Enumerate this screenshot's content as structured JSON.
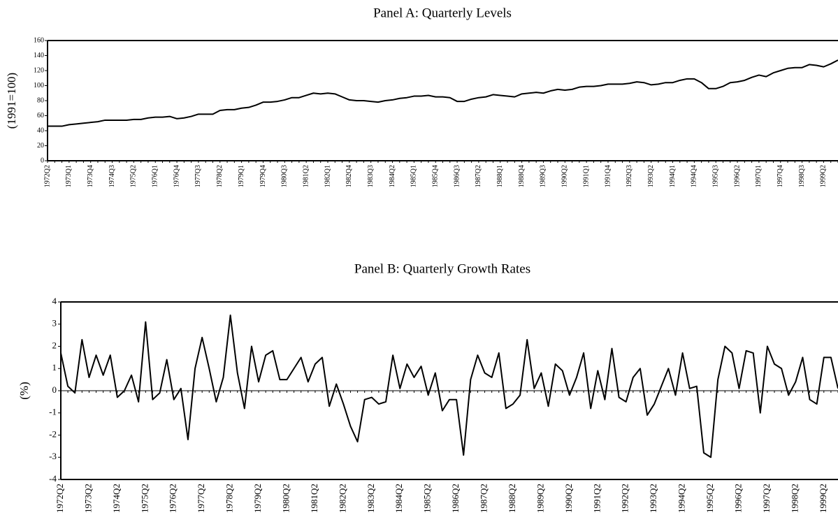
{
  "chart_data": [
    {
      "type": "line",
      "title": "Panel A: Quarterly Levels",
      "y_label": "(1991=100)",
      "categories": [
        "1972Q2",
        null,
        null,
        "1973Q1",
        null,
        null,
        "1973Q4",
        null,
        null,
        "1974Q3",
        null,
        null,
        "1975Q2",
        null,
        null,
        "1976Q1",
        null,
        null,
        "1976Q4",
        null,
        null,
        "1977Q3",
        null,
        null,
        "1978Q2",
        null,
        null,
        "1979Q1",
        null,
        null,
        "1979Q4",
        null,
        null,
        "1980Q3",
        null,
        null,
        "1981Q2",
        null,
        null,
        "1982Q1",
        null,
        null,
        "1982Q4",
        null,
        null,
        "1983Q3",
        null,
        null,
        "1984Q2",
        null,
        null,
        "1985Q1",
        null,
        null,
        "1985Q4",
        null,
        null,
        "1986Q3",
        null,
        null,
        "1987Q2",
        null,
        null,
        "1988Q1",
        null,
        null,
        "1988Q4",
        null,
        null,
        "1989Q3",
        null,
        null,
        "1990Q2",
        null,
        null,
        "1991Q1",
        null,
        null,
        "1991Q4",
        null,
        null,
        "1992Q3",
        null,
        null,
        "1993Q2",
        null,
        null,
        "1994Q1",
        null,
        null,
        "1994Q4",
        null,
        null,
        "1995Q3",
        null,
        null,
        "1996Q2",
        null,
        null,
        "1997Q1",
        null,
        null,
        "1997Q4",
        null,
        null,
        "1998Q3",
        null,
        null,
        "1999Q2",
        null,
        null
      ],
      "values": [
        46,
        46,
        46,
        48,
        49,
        50,
        51,
        52,
        54,
        54,
        54,
        54,
        55,
        55,
        57,
        58,
        58,
        59,
        56,
        57,
        59,
        62,
        62,
        62,
        67,
        68,
        68,
        70,
        71,
        74,
        78,
        78,
        79,
        81,
        84,
        84,
        87,
        90,
        89,
        90,
        89,
        85,
        81,
        80,
        80,
        79,
        78,
        80,
        81,
        83,
        84,
        86,
        86,
        87,
        85,
        85,
        84,
        79,
        79,
        82,
        84,
        85,
        88,
        87,
        86,
        85,
        89,
        90,
        91,
        90,
        93,
        95,
        94,
        95,
        98,
        99,
        99,
        100,
        102,
        102,
        102,
        103,
        105,
        104,
        101,
        102,
        104,
        104,
        107,
        109,
        109,
        104,
        96,
        96,
        99,
        104,
        105,
        107,
        111,
        114,
        112,
        117,
        120,
        123,
        124,
        124,
        128,
        127,
        125,
        129,
        134
      ],
      "color": "#000000",
      "ylim": [
        0,
        160
      ],
      "yticks": [
        0,
        20,
        40,
        60,
        80,
        100,
        120,
        140,
        160
      ],
      "grid": false
    },
    {
      "type": "line",
      "title": "Panel B: Quarterly Growth Rates",
      "y_label": "(%)",
      "categories": [
        "1972Q2",
        null,
        null,
        null,
        "1973Q2",
        null,
        null,
        null,
        "1974Q2",
        null,
        null,
        null,
        "1975Q2",
        null,
        null,
        null,
        "1976Q2",
        null,
        null,
        null,
        "1977Q2",
        null,
        null,
        null,
        "1978Q2",
        null,
        null,
        null,
        "1979Q2",
        null,
        null,
        null,
        "1980Q2",
        null,
        null,
        null,
        "1981Q2",
        null,
        null,
        null,
        "1982Q2",
        null,
        null,
        null,
        "1983Q2",
        null,
        null,
        null,
        "1984Q2",
        null,
        null,
        null,
        "1985Q2",
        null,
        null,
        null,
        "1986Q2",
        null,
        null,
        null,
        "1987Q2",
        null,
        null,
        null,
        "1988Q2",
        null,
        null,
        null,
        "1989Q2",
        null,
        null,
        null,
        "1990Q2",
        null,
        null,
        null,
        "1991Q2",
        null,
        null,
        null,
        "1992Q2",
        null,
        null,
        null,
        "1993Q2",
        null,
        null,
        null,
        "1994Q2",
        null,
        null,
        null,
        "1995Q2",
        null,
        null,
        null,
        "1996Q2",
        null,
        null,
        null,
        "1997Q2",
        null,
        null,
        null,
        "1998Q2",
        null,
        null,
        null,
        "1999Q2",
        null,
        null
      ],
      "values": [
        1.7,
        0.2,
        -0.1,
        2.3,
        0.6,
        1.6,
        0.7,
        1.6,
        -0.3,
        0.0,
        0.7,
        -0.5,
        3.1,
        -0.4,
        -0.1,
        1.4,
        -0.4,
        0.1,
        -2.2,
        1.0,
        2.4,
        1.0,
        -0.5,
        0.6,
        3.4,
        0.8,
        -0.8,
        2.0,
        0.4,
        1.6,
        1.8,
        0.5,
        0.5,
        1.0,
        1.5,
        0.4,
        1.2,
        1.5,
        -0.7,
        0.3,
        -0.6,
        -1.6,
        -2.3,
        -0.4,
        -0.3,
        -0.6,
        -0.5,
        1.6,
        0.1,
        1.2,
        0.6,
        1.1,
        -0.2,
        0.8,
        -0.9,
        -0.4,
        -0.4,
        -2.9,
        0.5,
        1.6,
        0.8,
        0.6,
        1.7,
        -0.8,
        -0.6,
        -0.2,
        2.3,
        0.1,
        0.8,
        -0.7,
        1.2,
        0.9,
        -0.2,
        0.6,
        1.7,
        -0.8,
        0.9,
        -0.4,
        1.9,
        -0.3,
        -0.5,
        0.6,
        1.0,
        -1.1,
        -0.6,
        0.2,
        1.0,
        -0.2,
        1.7,
        0.1,
        0.2,
        -2.8,
        -3.0,
        0.5,
        2.0,
        1.7,
        0.1,
        1.8,
        1.7,
        -1.0,
        2.0,
        1.2,
        1.0,
        -0.2,
        0.4,
        1.5,
        -0.4,
        -0.6,
        1.5,
        1.5,
        0.1
      ],
      "color": "#000000",
      "ylim": [
        -4,
        4
      ],
      "yticks": [
        -4,
        -3,
        -2,
        -1,
        0,
        1,
        2,
        3,
        4
      ],
      "grid": false
    }
  ]
}
